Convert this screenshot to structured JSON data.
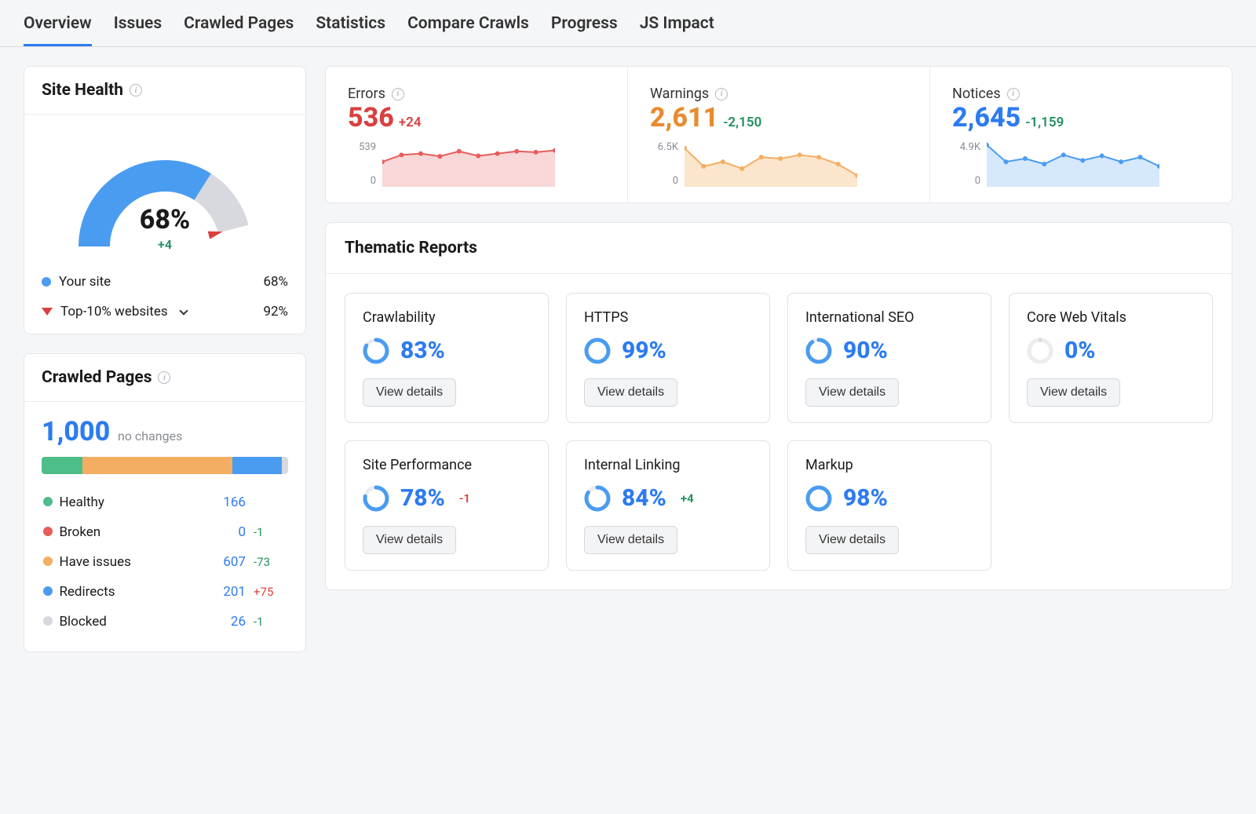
{
  "colors": {
    "blue": "#4a9cf0",
    "blue_dark": "#2d7bf0",
    "green": "#4dbd8a",
    "green_text": "#1f8f5b",
    "orange": "#f4ae62",
    "orange_dark": "#e88b2e",
    "red": "#e85c5c",
    "red_text": "#d94040",
    "grey": "#d8d9de",
    "grey_text": "#8a8c96",
    "grey_light": "#ececef"
  },
  "tabs": {
    "items": [
      "Overview",
      "Issues",
      "Crawled Pages",
      "Statistics",
      "Compare Crawls",
      "Progress",
      "JS Impact"
    ],
    "active_index": 0
  },
  "site_health": {
    "title": "Site Health",
    "value": 68,
    "value_display": "68%",
    "delta": "+4",
    "gauge": {
      "blue_pct": 68,
      "grey_pct": 24,
      "pointer_pct": 92
    },
    "rows": [
      {
        "icon": "dot",
        "color": "#4a9cf0",
        "label": "Your site",
        "value": "68%"
      },
      {
        "icon": "triangle",
        "color": "#d94040",
        "label": "Top-10% websites",
        "dropdown": true,
        "value": "92%"
      }
    ]
  },
  "crawled": {
    "title": "Crawled Pages",
    "total": "1,000",
    "no_change_label": "no changes",
    "segments": [
      {
        "key": "healthy",
        "color": "#4dbd8a",
        "pct": 16.6
      },
      {
        "key": "issues",
        "color": "#f4ae62",
        "pct": 60.7
      },
      {
        "key": "redirects",
        "color": "#4a9cf0",
        "pct": 20.1
      },
      {
        "key": "blocked",
        "color": "#d8d9de",
        "pct": 2.6
      }
    ],
    "rows": [
      {
        "label": "Healthy",
        "dot": "#4dbd8a",
        "count": "166",
        "delta": "",
        "delta_class": ""
      },
      {
        "label": "Broken",
        "dot": "#e85c5c",
        "count": "0",
        "delta": "-1",
        "delta_class": "green"
      },
      {
        "label": "Have issues",
        "dot": "#f4ae62",
        "count": "607",
        "delta": "-73",
        "delta_class": "green"
      },
      {
        "label": "Redirects",
        "dot": "#4a9cf0",
        "count": "201",
        "delta": "+75",
        "delta_class": "red"
      },
      {
        "label": "Blocked",
        "dot": "#d8d9de",
        "count": "26",
        "delta": "-1",
        "delta_class": "green"
      }
    ]
  },
  "metrics": [
    {
      "title": "Errors",
      "value": "536",
      "value_color": "#d94040",
      "delta": "+24",
      "delta_color": "#d94040",
      "y_top": "539",
      "y_bot": "0",
      "line_color": "#e85c5c",
      "fill_color": "#f7d7d7",
      "points": [
        0.55,
        0.7,
        0.73,
        0.67,
        0.78,
        0.68,
        0.73,
        0.78,
        0.76,
        0.8
      ]
    },
    {
      "title": "Warnings",
      "value": "2,611",
      "value_color": "#e88b2e",
      "delta": "-2,150",
      "delta_color": "#1f8f5b",
      "y_top": "6.5K",
      "y_bot": "0",
      "line_color": "#f4ae62",
      "fill_color": "#fbe5cc",
      "points": [
        0.85,
        0.45,
        0.55,
        0.4,
        0.65,
        0.62,
        0.7,
        0.65,
        0.5,
        0.25
      ]
    },
    {
      "title": "Notices",
      "value": "2,645",
      "value_color": "#2d7bf0",
      "delta": "-1,159",
      "delta_color": "#1f8f5b",
      "y_top": "4.9K",
      "y_bot": "0",
      "line_color": "#4a9cf0",
      "fill_color": "#d6e8fb",
      "points": [
        0.92,
        0.55,
        0.62,
        0.5,
        0.7,
        0.58,
        0.68,
        0.55,
        0.65,
        0.45
      ]
    }
  ],
  "thematic": {
    "title": "Thematic Reports",
    "view_btn": "View details",
    "reports": [
      {
        "title": "Crawlability",
        "pct": 83,
        "pct_display": "83%",
        "delta": "",
        "delta_class": ""
      },
      {
        "title": "HTTPS",
        "pct": 99,
        "pct_display": "99%",
        "delta": "",
        "delta_class": ""
      },
      {
        "title": "International SEO",
        "pct": 90,
        "pct_display": "90%",
        "delta": "",
        "delta_class": ""
      },
      {
        "title": "Core Web Vitals",
        "pct": 0,
        "pct_display": "0%",
        "delta": "",
        "delta_class": ""
      },
      {
        "title": "Site Performance",
        "pct": 78,
        "pct_display": "78%",
        "delta": "-1",
        "delta_class": "red"
      },
      {
        "title": "Internal Linking",
        "pct": 84,
        "pct_display": "84%",
        "delta": "+4",
        "delta_class": "green"
      },
      {
        "title": "Markup",
        "pct": 98,
        "pct_display": "98%",
        "delta": "",
        "delta_class": ""
      }
    ]
  }
}
